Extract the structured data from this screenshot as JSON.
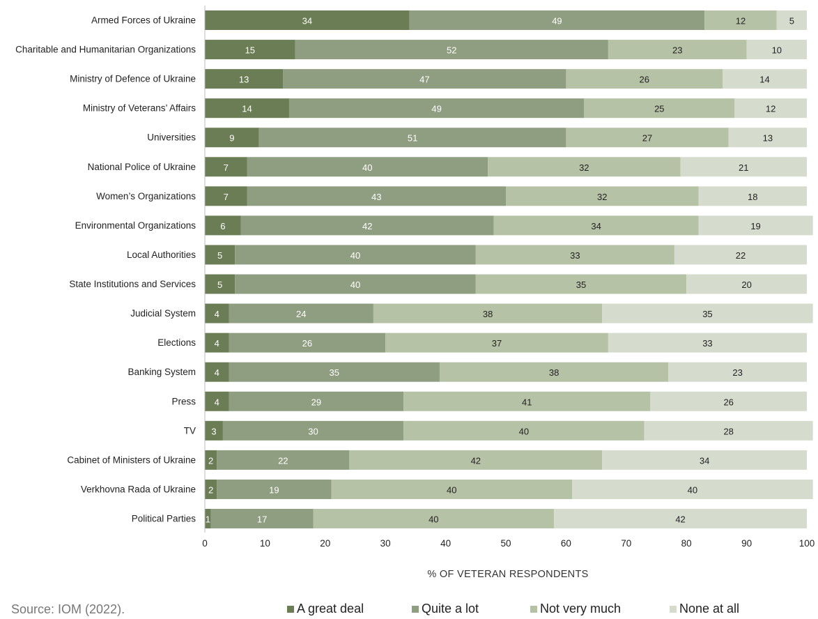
{
  "chart_data": {
    "type": "bar",
    "orientation": "horizontal",
    "stacked": true,
    "categories": [
      "Armed Forces of Ukraine",
      "Charitable and Humanitarian Organizations",
      "Ministry of Defence of Ukraine",
      "Ministry of Veterans’ Affairs",
      "Universities",
      "National Police of Ukraine",
      "Women’s Organizations",
      "Environmental Organizations",
      "Local Authorities",
      "State Institutions and Services",
      "Judicial System",
      "Elections",
      "Banking System",
      "Press",
      "TV",
      "Cabinet of Ministers of Ukraine",
      "Verkhovna Rada of Ukraine",
      "Political Parties"
    ],
    "series": [
      {
        "name": "A great deal",
        "color": "#6b7d55",
        "label_color": "#ffffff",
        "values": [
          34,
          15,
          13,
          14,
          9,
          7,
          7,
          6,
          5,
          5,
          4,
          4,
          4,
          4,
          3,
          2,
          2,
          1
        ]
      },
      {
        "name": "Quite a lot",
        "color": "#8f9e80",
        "label_color": "#ffffff",
        "values": [
          49,
          52,
          47,
          49,
          51,
          40,
          43,
          42,
          40,
          40,
          24,
          26,
          35,
          29,
          30,
          22,
          19,
          17
        ]
      },
      {
        "name": "Not very much",
        "color": "#b6c2a6",
        "label_color": "#222222",
        "values": [
          12,
          23,
          26,
          25,
          27,
          32,
          32,
          34,
          33,
          35,
          38,
          37,
          38,
          41,
          40,
          42,
          40,
          40
        ]
      },
      {
        "name": "None at all",
        "color": "#d5dbcd",
        "label_color": "#222222",
        "values": [
          5,
          10,
          14,
          12,
          13,
          21,
          18,
          19,
          22,
          20,
          35,
          33,
          23,
          26,
          28,
          34,
          40,
          42
        ]
      }
    ],
    "xlim": [
      0,
      100
    ],
    "xticks": [
      0,
      10,
      20,
      30,
      40,
      50,
      60,
      70,
      80,
      90,
      100
    ],
    "xlabel": "% OF VETERAN RESPONDENTS",
    "ylabel": "",
    "title": "",
    "grid": false,
    "legend_position": "bottom"
  },
  "source": "Source: IOM (2022)."
}
